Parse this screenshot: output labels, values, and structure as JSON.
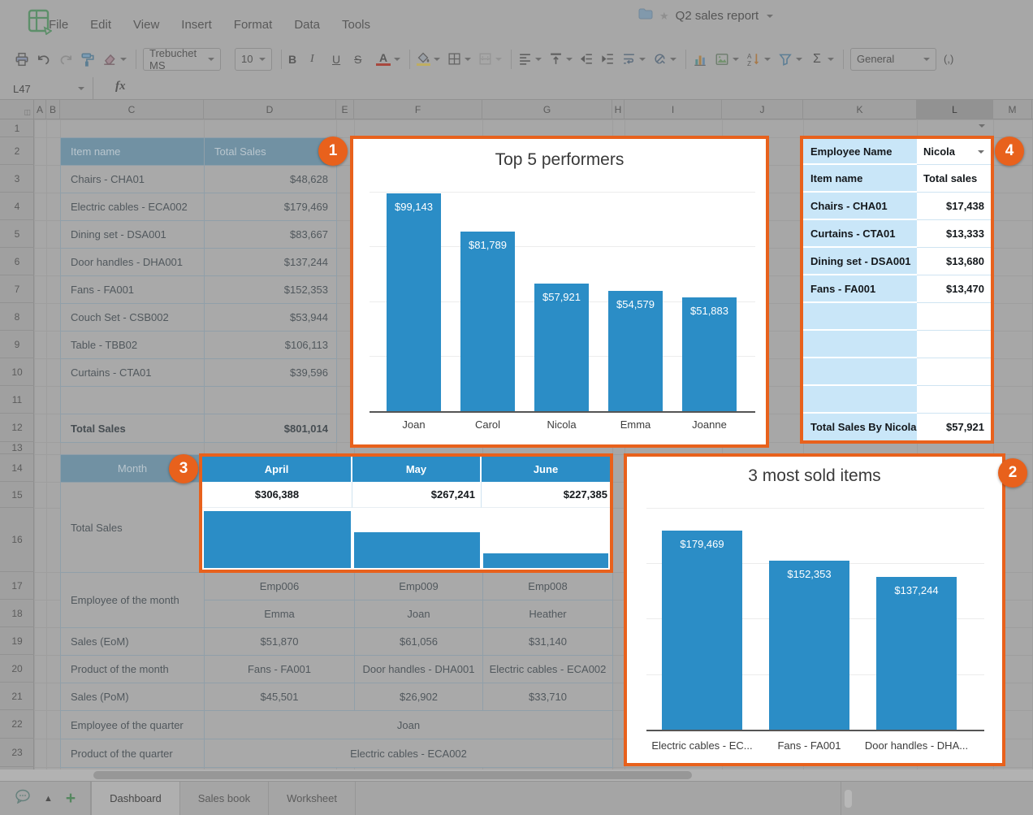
{
  "chrome": {
    "menu_items": [
      "File",
      "Edit",
      "View",
      "Insert",
      "Format",
      "Data",
      "Tools"
    ],
    "doc_title": "Q2 sales report",
    "name_box": "L47",
    "fx_label": "fx",
    "toolbar": {
      "font_name": "Trebuchet MS",
      "font_size": "10",
      "number_format": "General",
      "bold": "B",
      "italic": "I",
      "underline": "U",
      "strikethrough": "S",
      "font_color": "A",
      "sum": "Σ",
      "comma_style": "(,)"
    },
    "column_headers": [
      "A",
      "B",
      "C",
      "D",
      "E",
      "F",
      "G",
      "H",
      "I",
      "J",
      "K",
      "L",
      "M"
    ],
    "selected_column": "L",
    "row_count": 23,
    "sheet_tabs": [
      "Dashboard",
      "Sales book",
      "Worksheet"
    ],
    "active_tab": "Dashboard"
  },
  "items_table": {
    "headers": [
      "Item name",
      "Total Sales"
    ],
    "rows": [
      [
        "Chairs - CHA01",
        "$48,628"
      ],
      [
        "Electric cables - ECA002",
        "$179,469"
      ],
      [
        "Dining set - DSA001",
        "$83,667"
      ],
      [
        "Door handles - DHA001",
        "$137,244"
      ],
      [
        "Fans - FA001",
        "$152,353"
      ],
      [
        "Couch Set - CSB002",
        "$53,944"
      ],
      [
        "Table - TBB02",
        "$106,113"
      ],
      [
        "Curtains - CTA01",
        "$39,596"
      ]
    ],
    "total_label": "Total Sales",
    "total_value": "$801,014"
  },
  "month_table": {
    "row_header": "Month",
    "total_sales_label": "Total Sales",
    "employee_of_month_label": "Employee of the month",
    "employee_ids": [
      "Emp006",
      "Emp009",
      "Emp008"
    ],
    "employee_names": [
      "Emma",
      "Joan",
      "Heather"
    ],
    "sales_eom_label": "Sales (EoM)",
    "sales_eom": [
      "$51,870",
      "$61,056",
      "$31,140"
    ],
    "product_of_month_label": "Product of the month",
    "products": [
      "Fans - FA001",
      "Door handles - DHA001",
      "Electric cables - ECA002"
    ],
    "sales_pom_label": "Sales (PoM)",
    "sales_pom": [
      "$45,501",
      "$26,902",
      "$33,710"
    ],
    "employee_of_quarter_label": "Employee of the quarter",
    "employee_of_quarter": "Joan",
    "product_of_quarter_label": "Product of the quarter",
    "product_of_quarter": "Electric cables - ECA002"
  },
  "lookup_table": {
    "employee_name_label": "Employee Name",
    "employee_selected": "Nicola",
    "item_col_label": "Item name",
    "sales_col_label": "Total sales",
    "rows": [
      [
        "Chairs - CHA01",
        "$17,438"
      ],
      [
        "Curtains - CTA01",
        "$13,333"
      ],
      [
        "Dining set - DSA001",
        "$13,680"
      ],
      [
        "Fans - FA001",
        "$13,470"
      ]
    ],
    "total_label": "Total Sales By Nicola",
    "total_value": "$57,921"
  },
  "chart_data": [
    {
      "id": "top5",
      "type": "bar",
      "title": "Top 5 performers",
      "categories": [
        "Joan",
        "Carol",
        "Nicola",
        "Emma",
        "Joanne"
      ],
      "values": [
        99143,
        81789,
        57921,
        54579,
        51883
      ],
      "value_labels": [
        "$99,143",
        "$81,789",
        "$57,921",
        "$54,579",
        "$51,883"
      ],
      "ylim": [
        0,
        101000
      ],
      "grid_step": 25000,
      "grid": true,
      "legend": false,
      "bar_color": "#2b8dc6"
    },
    {
      "id": "top3items",
      "type": "bar",
      "title": "3 most sold items",
      "categories": [
        "Electric cables - EC...",
        "Fans - FA001",
        "Door handles - DHA..."
      ],
      "values": [
        179469,
        152353,
        137244
      ],
      "value_labels": [
        "$179,469",
        "$152,353",
        "$137,244"
      ],
      "ylim": [
        0,
        210000
      ],
      "grid_step": 50000,
      "grid": true,
      "legend": false,
      "bar_color": "#2b8dc6"
    },
    {
      "id": "month_spark",
      "type": "bar",
      "categories": [
        "April",
        "May",
        "June"
      ],
      "values": [
        306388,
        267241,
        227385
      ],
      "value_labels": [
        "$306,388",
        "$267,241",
        "$227,385"
      ],
      "ylim": [
        200000,
        312000
      ],
      "bar_color": "#2b8dc6"
    }
  ],
  "annotations": {
    "badge_labels": [
      "1",
      "2",
      "3",
      "4"
    ],
    "highlight_color": "#e8611c"
  }
}
